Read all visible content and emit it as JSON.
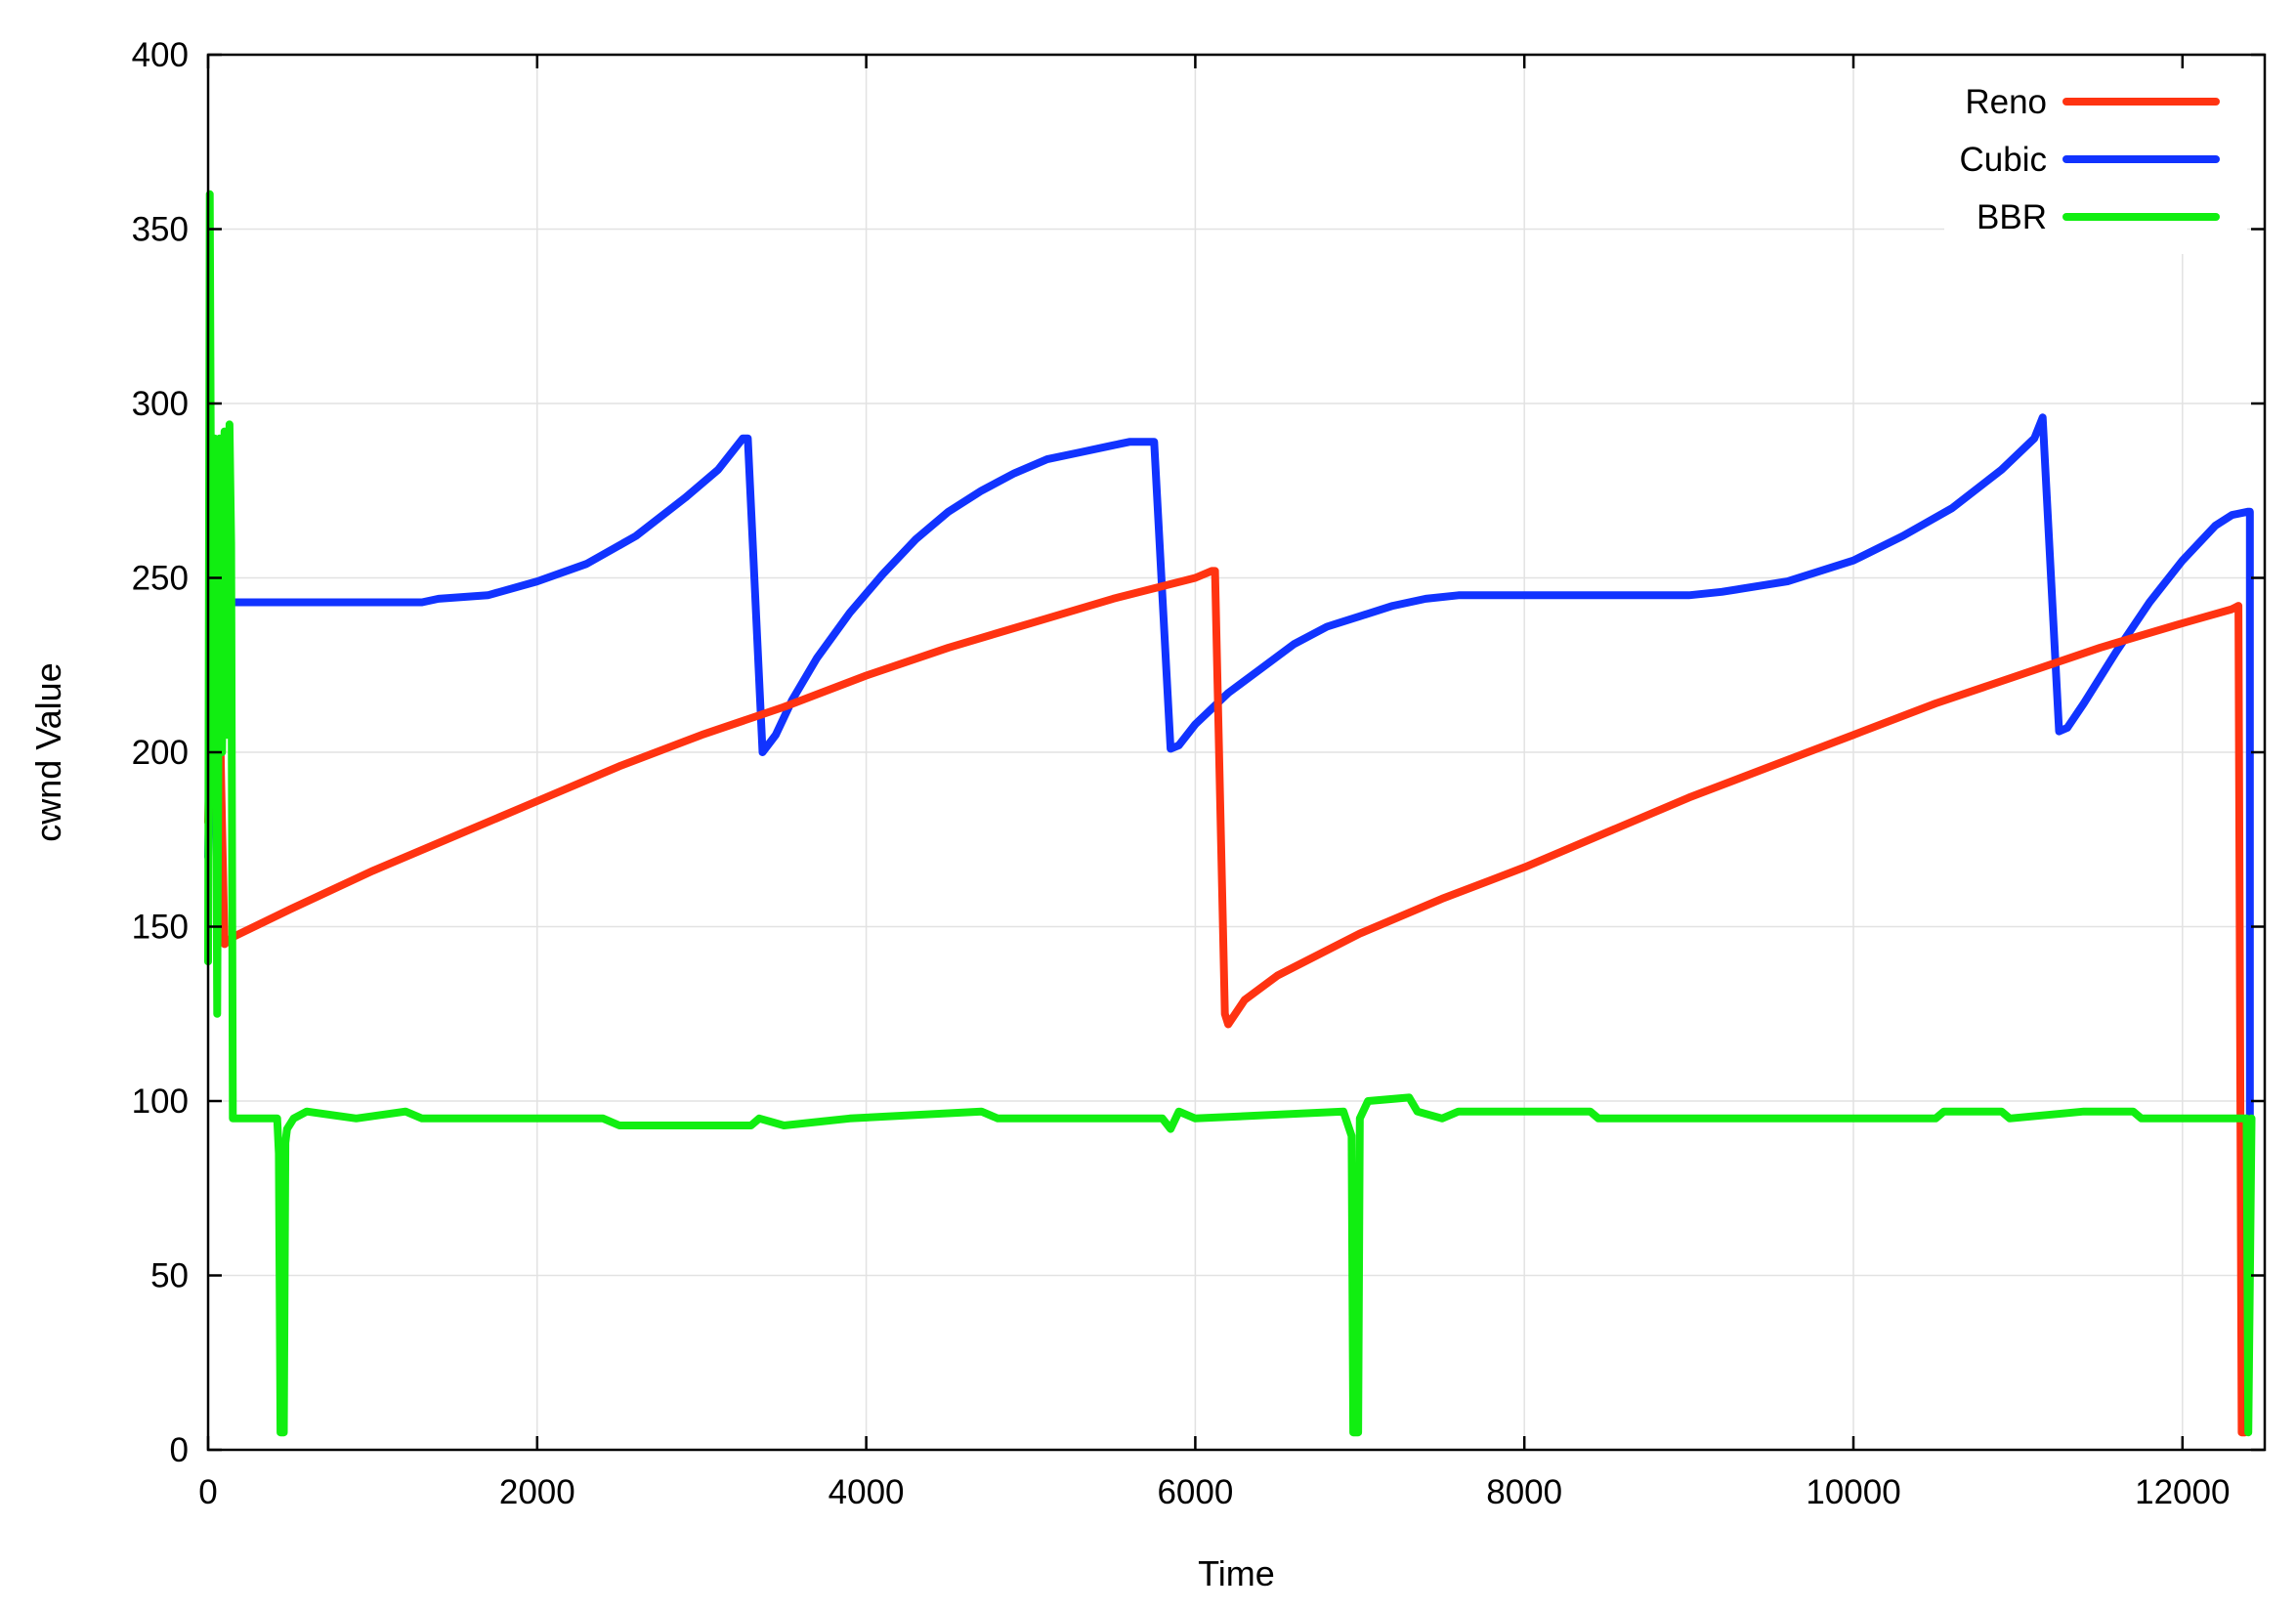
{
  "chart_data": {
    "type": "line",
    "title": "",
    "xlabel": "Time",
    "ylabel": "cwnd Value",
    "xlim": [
      0,
      12500
    ],
    "ylim": [
      0,
      400
    ],
    "x_ticks": [
      0,
      2000,
      4000,
      6000,
      8000,
      10000,
      12000
    ],
    "y_ticks": [
      0,
      50,
      100,
      150,
      200,
      250,
      300,
      350,
      400
    ],
    "grid": true,
    "legend_position": "top-right",
    "series": [
      {
        "name": "Reno",
        "color": "#ff3311",
        "points": [
          [
            0,
            180
          ],
          [
            20,
            220
          ],
          [
            40,
            200
          ],
          [
            60,
            240
          ],
          [
            80,
            190
          ],
          [
            100,
            145
          ],
          [
            150,
            147
          ],
          [
            500,
            155
          ],
          [
            1000,
            166
          ],
          [
            1500,
            176
          ],
          [
            2000,
            186
          ],
          [
            2500,
            196
          ],
          [
            3000,
            205
          ],
          [
            3500,
            213
          ],
          [
            4000,
            222
          ],
          [
            4500,
            230
          ],
          [
            5000,
            237
          ],
          [
            5500,
            244
          ],
          [
            6000,
            250
          ],
          [
            6100,
            252
          ],
          [
            6120,
            252
          ],
          [
            6180,
            125
          ],
          [
            6200,
            122
          ],
          [
            6300,
            129
          ],
          [
            6500,
            136
          ],
          [
            7000,
            148
          ],
          [
            7500,
            158
          ],
          [
            8000,
            167
          ],
          [
            8500,
            177
          ],
          [
            9000,
            187
          ],
          [
            9500,
            196
          ],
          [
            10000,
            205
          ],
          [
            10500,
            214
          ],
          [
            11000,
            222
          ],
          [
            11500,
            230
          ],
          [
            12000,
            237
          ],
          [
            12300,
            241
          ],
          [
            12340,
            242
          ],
          [
            12360,
            5
          ],
          [
            12380,
            5
          ]
        ]
      },
      {
        "name": "Cubic",
        "color": "#1133ff",
        "points": [
          [
            0,
            170
          ],
          [
            30,
            240
          ],
          [
            60,
            200
          ],
          [
            100,
            260
          ],
          [
            140,
            243
          ],
          [
            500,
            243
          ],
          [
            1000,
            243
          ],
          [
            1300,
            243
          ],
          [
            1400,
            244
          ],
          [
            1700,
            245
          ],
          [
            2000,
            249
          ],
          [
            2300,
            254
          ],
          [
            2600,
            262
          ],
          [
            2900,
            273
          ],
          [
            3100,
            281
          ],
          [
            3250,
            290
          ],
          [
            3280,
            290
          ],
          [
            3370,
            200
          ],
          [
            3450,
            205
          ],
          [
            3550,
            215
          ],
          [
            3700,
            227
          ],
          [
            3900,
            240
          ],
          [
            4100,
            251
          ],
          [
            4300,
            261
          ],
          [
            4500,
            269
          ],
          [
            4700,
            275
          ],
          [
            4900,
            280
          ],
          [
            5100,
            284
          ],
          [
            5300,
            286
          ],
          [
            5500,
            288
          ],
          [
            5600,
            289
          ],
          [
            5750,
            289
          ],
          [
            5850,
            201
          ],
          [
            5900,
            202
          ],
          [
            6000,
            208
          ],
          [
            6200,
            217
          ],
          [
            6400,
            224
          ],
          [
            6600,
            231
          ],
          [
            6800,
            236
          ],
          [
            7000,
            239
          ],
          [
            7200,
            242
          ],
          [
            7400,
            244
          ],
          [
            7600,
            245
          ],
          [
            8000,
            245
          ],
          [
            9000,
            245
          ],
          [
            9200,
            246
          ],
          [
            9600,
            249
          ],
          [
            10000,
            255
          ],
          [
            10300,
            262
          ],
          [
            10600,
            270
          ],
          [
            10900,
            281
          ],
          [
            11100,
            290
          ],
          [
            11150,
            296
          ],
          [
            11250,
            206
          ],
          [
            11300,
            207
          ],
          [
            11400,
            214
          ],
          [
            11600,
            229
          ],
          [
            11800,
            243
          ],
          [
            12000,
            255
          ],
          [
            12200,
            265
          ],
          [
            12300,
            268
          ],
          [
            12400,
            269
          ],
          [
            12410,
            269
          ],
          [
            12410,
            95
          ]
        ]
      },
      {
        "name": "BBR",
        "color": "#11ee11",
        "points": [
          [
            0,
            140
          ],
          [
            10,
            360
          ],
          [
            25,
            185
          ],
          [
            40,
            290
          ],
          [
            55,
            125
          ],
          [
            70,
            290
          ],
          [
            85,
            200
          ],
          [
            100,
            292
          ],
          [
            115,
            205
          ],
          [
            130,
            294
          ],
          [
            140,
            260
          ],
          [
            150,
            95
          ],
          [
            200,
            95
          ],
          [
            420,
            95
          ],
          [
            430,
            85
          ],
          [
            440,
            5
          ],
          [
            460,
            5
          ],
          [
            470,
            88
          ],
          [
            480,
            92
          ],
          [
            520,
            95
          ],
          [
            600,
            97
          ],
          [
            900,
            95
          ],
          [
            1200,
            97
          ],
          [
            1300,
            95
          ],
          [
            2400,
            95
          ],
          [
            2500,
            93
          ],
          [
            3300,
            93
          ],
          [
            3350,
            95
          ],
          [
            3500,
            93
          ],
          [
            3900,
            95
          ],
          [
            4700,
            97
          ],
          [
            4800,
            95
          ],
          [
            5800,
            95
          ],
          [
            5850,
            92
          ],
          [
            5900,
            97
          ],
          [
            6000,
            95
          ],
          [
            6900,
            97
          ],
          [
            6950,
            90
          ],
          [
            6960,
            5
          ],
          [
            6990,
            5
          ],
          [
            7000,
            95
          ],
          [
            7050,
            100
          ],
          [
            7300,
            101
          ],
          [
            7350,
            97
          ],
          [
            7500,
            95
          ],
          [
            7600,
            97
          ],
          [
            7900,
            97
          ],
          [
            8400,
            97
          ],
          [
            8450,
            95
          ],
          [
            10500,
            95
          ],
          [
            10550,
            97
          ],
          [
            10900,
            97
          ],
          [
            10950,
            95
          ],
          [
            11400,
            97
          ],
          [
            11700,
            97
          ],
          [
            11750,
            95
          ],
          [
            12390,
            95
          ],
          [
            12400,
            5
          ],
          [
            12420,
            95
          ]
        ]
      }
    ]
  }
}
